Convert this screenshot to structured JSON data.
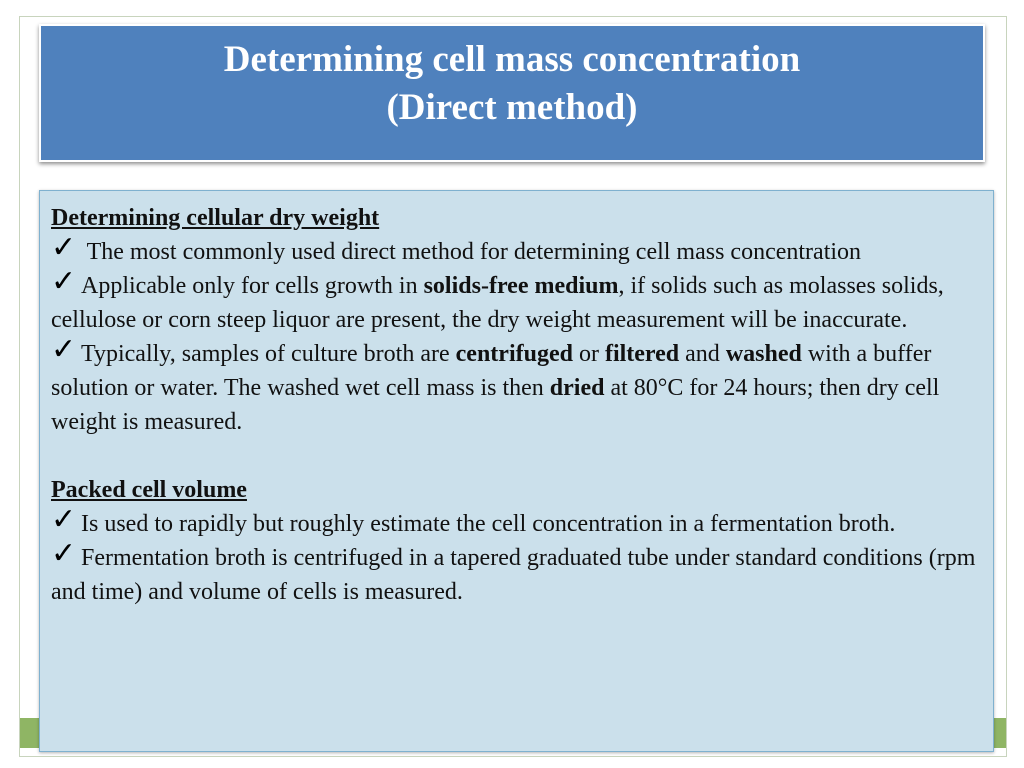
{
  "slide": {
    "title_line1": "Determining cell mass concentration",
    "title_line2": "(Direct method)"
  },
  "sections": {
    "dry_weight": {
      "heading": "Determining cellular dry weight",
      "bullet1": "The most commonly used direct method for determining cell mass concentration",
      "bullet2_a": "Applicable only for cells growth in ",
      "bullet2_b": "solids-free medium",
      "bullet2_c": ", if solids such as molasses solids, cellulose or corn steep liquor are present, the dry weight measurement will be inaccurate.",
      "bullet3_a": "Typically, samples of culture broth are ",
      "bullet3_b": "centrifuged",
      "bullet3_c": " or ",
      "bullet3_d": "filtered",
      "bullet3_e": " and ",
      "bullet3_f": "washed",
      "bullet3_g": " with a buffer solution or water. The washed wet cell mass is then ",
      "bullet3_h": "dried",
      "bullet3_i": " at 80°C for 24 hours; then dry cell weight is measured."
    },
    "packed_volume": {
      "heading": "Packed cell volume",
      "bullet1": "Is used to rapidly but roughly estimate the cell concentration in a fermentation broth.",
      "bullet2": "Fermentation broth is centrifuged in a tapered graduated tube under standard conditions (rpm and time) and volume of cells is measured."
    },
    "check_glyph": "✓"
  },
  "colors": {
    "title_bg": "#4f81bd",
    "content_bg": "#cbe0eb",
    "accent_green": "#8fb564"
  },
  "icons": [
    "checkmark-icon"
  ]
}
